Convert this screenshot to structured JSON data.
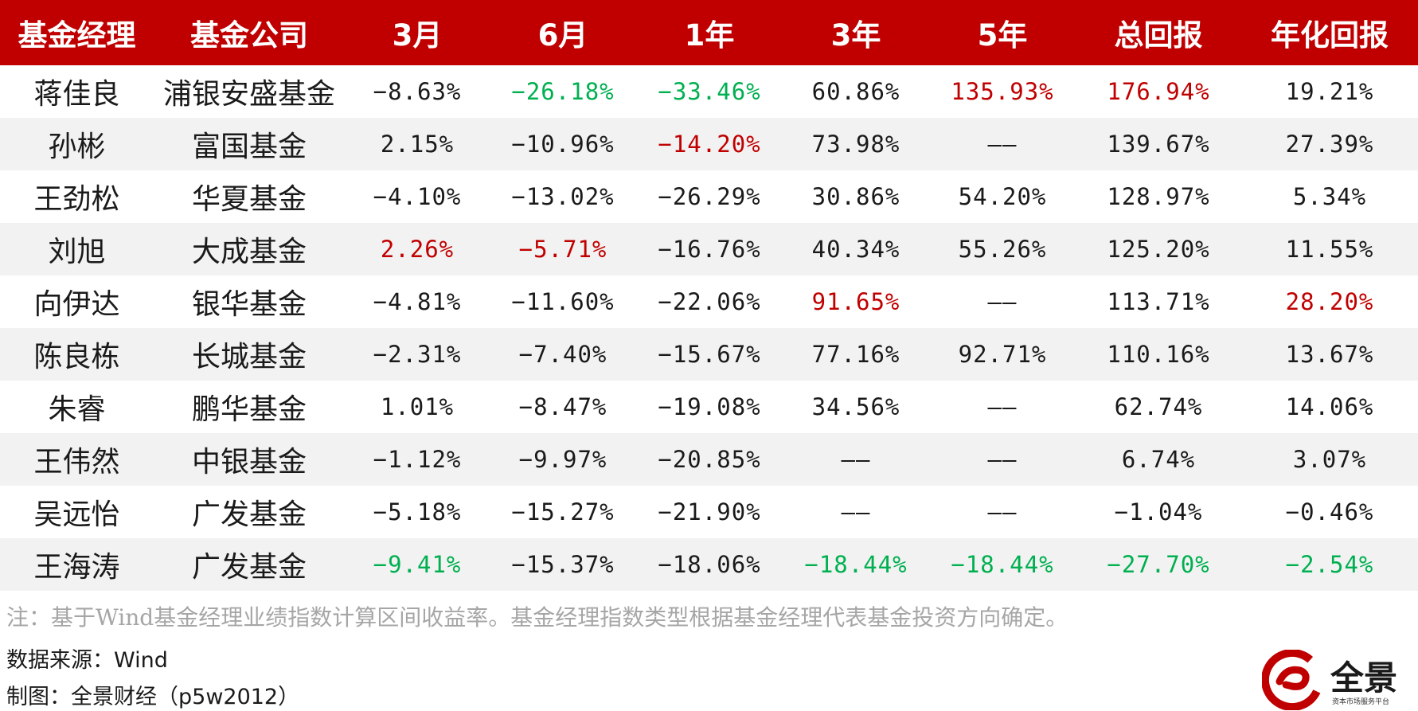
{
  "table": {
    "headers": [
      "基金经理",
      "基金公司",
      "3月",
      "6月",
      "1年",
      "3年",
      "5年",
      "总回报",
      "年化回报"
    ],
    "rows": [
      {
        "name": "蒋佳良",
        "company": "浦银安盛基金",
        "m3": "−8.63%",
        "m6": "−26.18%",
        "y1": "−33.46%",
        "y3": "60.86%",
        "y5": "135.93%",
        "total": "176.94%",
        "annual": "19.21%"
      },
      {
        "name": "孙彬",
        "company": "富国基金",
        "m3": "2.15%",
        "m6": "−10.96%",
        "y1": "−14.20%",
        "y3": "73.98%",
        "y5": "——",
        "total": "139.67%",
        "annual": "27.39%"
      },
      {
        "name": "王劲松",
        "company": "华夏基金",
        "m3": "−4.10%",
        "m6": "−13.02%",
        "y1": "−26.29%",
        "y3": "30.86%",
        "y5": "54.20%",
        "total": "128.97%",
        "annual": "5.34%"
      },
      {
        "name": "刘旭",
        "company": "大成基金",
        "m3": "2.26%",
        "m6": "−5.71%",
        "y1": "−16.76%",
        "y3": "40.34%",
        "y5": "55.26%",
        "total": "125.20%",
        "annual": "11.55%"
      },
      {
        "name": "向伊达",
        "company": "银华基金",
        "m3": "−4.81%",
        "m6": "−11.60%",
        "y1": "−22.06%",
        "y3": "91.65%",
        "y5": "——",
        "total": "113.71%",
        "annual": "28.20%"
      },
      {
        "name": "陈良栋",
        "company": "长城基金",
        "m3": "−2.31%",
        "m6": "−7.40%",
        "y1": "−15.67%",
        "y3": "77.16%",
        "y5": "92.71%",
        "total": "110.16%",
        "annual": "13.67%"
      },
      {
        "name": "朱睿",
        "company": "鹏华基金",
        "m3": "1.01%",
        "m6": "−8.47%",
        "y1": "−19.08%",
        "y3": "34.56%",
        "y5": "——",
        "total": "62.74%",
        "annual": "14.06%"
      },
      {
        "name": "王伟然",
        "company": "中银基金",
        "m3": "−1.12%",
        "m6": "−9.97%",
        "y1": "−20.85%",
        "y3": "——",
        "y5": "——",
        "total": "6.74%",
        "annual": "3.07%"
      },
      {
        "name": "吴远怡",
        "company": "广发基金",
        "m3": "−5.18%",
        "m6": "−15.27%",
        "y1": "−21.90%",
        "y3": "——",
        "y5": "——",
        "total": "−1.04%",
        "annual": "−0.46%"
      },
      {
        "name": "王海涛",
        "company": "广发基金",
        "m3": "−9.41%",
        "m6": "−15.37%",
        "y1": "−18.06%",
        "y3": "−18.44%",
        "y5": "−18.44%",
        "total": "−27.70%",
        "annual": "−2.54%"
      }
    ],
    "highlights": {
      "0": {
        "m6": "green",
        "y1": "green",
        "y5": "red",
        "total": "red"
      },
      "1": {
        "y1": "red"
      },
      "3": {
        "m3": "red",
        "m6": "red"
      },
      "4": {
        "y3": "red",
        "annual": "red"
      },
      "9": {
        "m3": "green",
        "y3": "green",
        "y5": "green",
        "total": "green",
        "annual": "green"
      }
    }
  },
  "colors": {
    "header_bg": "#c00000",
    "red": "#c00000",
    "green": "#00b050",
    "alt_row_bg": "#f2f2f2",
    "note_text": "#a6a6a6"
  },
  "footer": {
    "note": "注：基于Wind基金经理业绩指数计算区间收益率。基金经理指数类型根据基金经理代表基金投资方向确定。",
    "source": "数据来源：Wind",
    "credit": "制图：全景财经（p5w2012）"
  },
  "logo": {
    "text": "全景",
    "tagline": "资本市场服务平台",
    "icon": "p5w-logo-icon",
    "color": "#c00000"
  }
}
